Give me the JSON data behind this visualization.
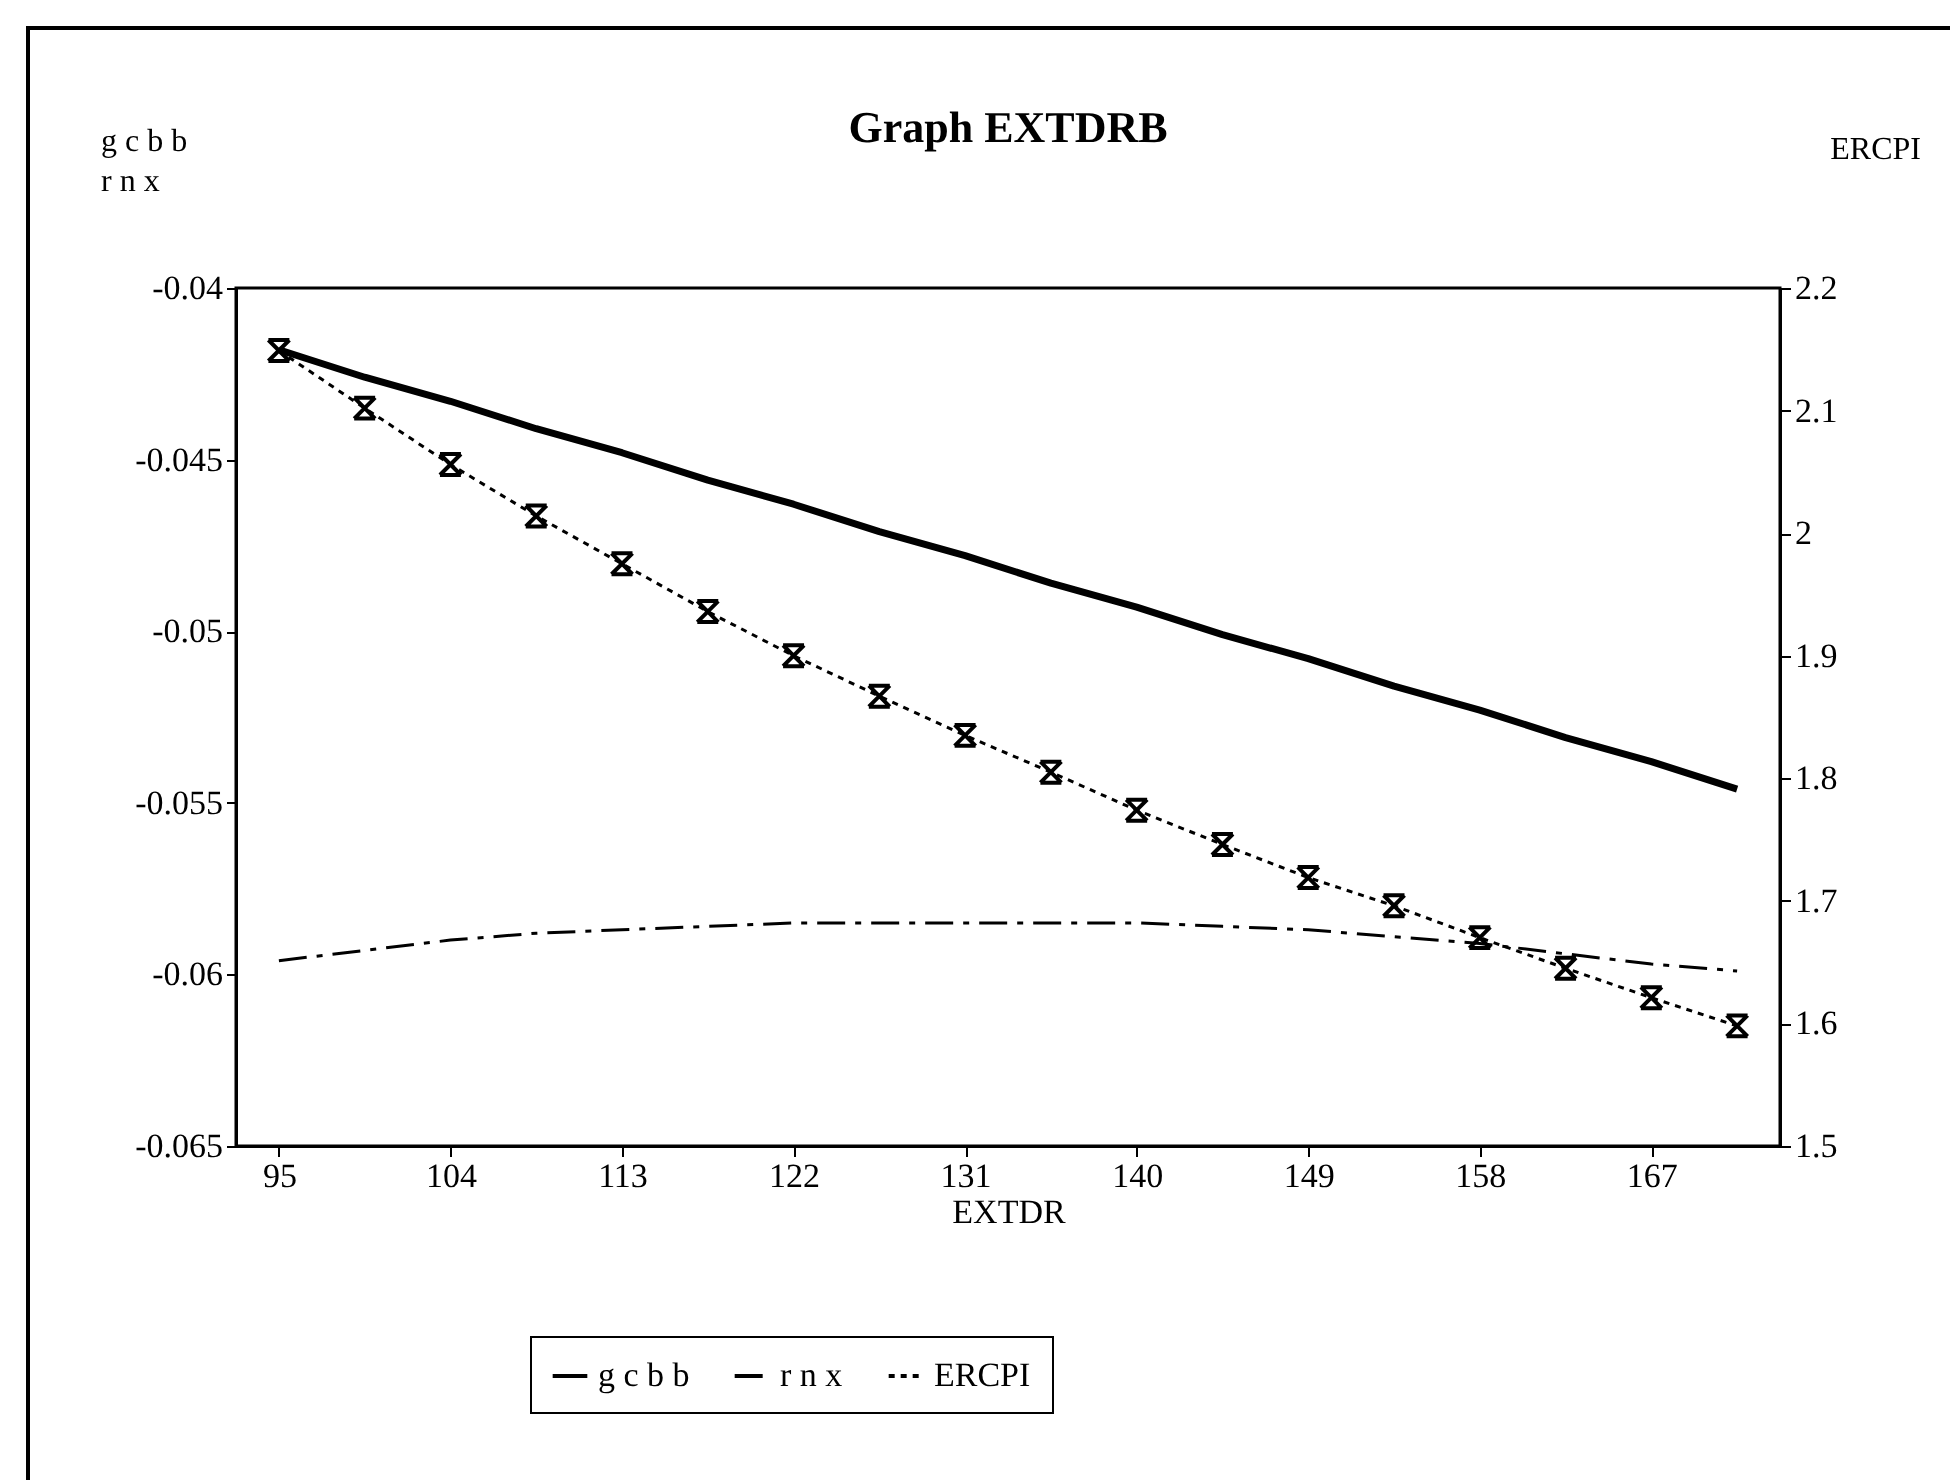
{
  "chart_data": {
    "type": "line",
    "title": "Graph EXTDRB",
    "xlabel": "EXTDR",
    "ylabel": "g c b b\nr n x",
    "y2label": "ERCPI",
    "x": [
      95,
      99.5,
      104,
      108.5,
      113,
      117.5,
      122,
      126.5,
      131,
      135.5,
      140,
      144.5,
      149,
      153.5,
      158,
      162.5,
      167,
      171.5
    ],
    "xlim": [
      92.75,
      173.75
    ],
    "xticks": [
      95,
      104,
      113,
      122,
      131,
      140,
      149,
      158,
      167
    ],
    "ylim": [
      -0.065,
      -0.04
    ],
    "yticks": [
      -0.065,
      -0.06,
      -0.055,
      -0.05,
      -0.045,
      -0.04
    ],
    "y2lim": [
      1.5,
      2.2
    ],
    "y2ticks": [
      1.5,
      1.6,
      1.7,
      1.8,
      1.9,
      2,
      2.1,
      2.2
    ],
    "grid": false,
    "legend": "bottom",
    "series": [
      {
        "name": "g c b b",
        "color": "#000000",
        "line_style": "solid",
        "marker": "none",
        "values": [
          -0.0418,
          -0.0426,
          -0.0433,
          -0.0441,
          -0.0448,
          -0.0456,
          -0.0463,
          -0.0471,
          -0.0478,
          -0.0486,
          -0.0493,
          -0.0501,
          -0.0508,
          -0.0516,
          -0.0523,
          -0.0531,
          -0.0538,
          -0.0546
        ]
      },
      {
        "name": "r n x",
        "color": "#000000",
        "line_style": "dashed",
        "marker": "none",
        "values": [
          -0.0596,
          -0.0593,
          -0.059,
          -0.0588,
          -0.0587,
          -0.0586,
          -0.0585,
          -0.0585,
          -0.0585,
          -0.0585,
          -0.0585,
          -0.0586,
          -0.0587,
          -0.0589,
          -0.0591,
          -0.0594,
          -0.0597,
          -0.0599
        ]
      },
      {
        "name": "ERCPI",
        "color": "#000000",
        "line_style": "dotted",
        "marker": "cross",
        "axis": "y2",
        "values": [
          2.149,
          2.102,
          2.056,
          2.014,
          1.975,
          1.936,
          1.9,
          1.867,
          1.835,
          1.805,
          1.774,
          1.746,
          1.719,
          1.696,
          1.67,
          1.645,
          1.621,
          1.598
        ]
      }
    ]
  }
}
